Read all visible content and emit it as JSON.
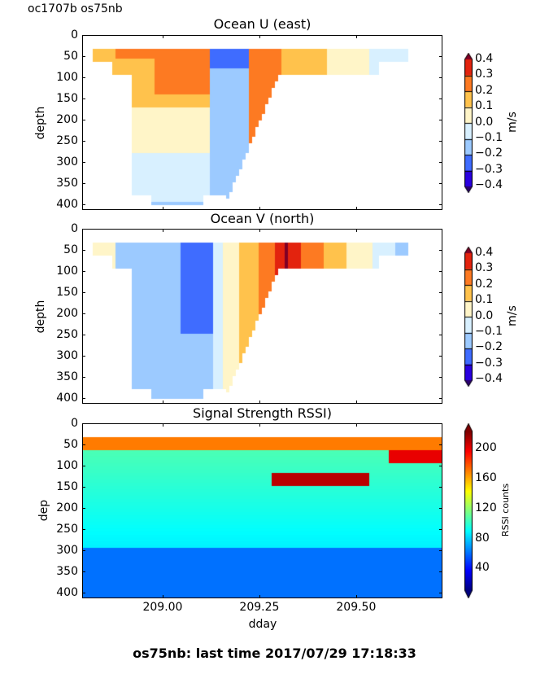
{
  "suptitle": "oc1707b os75nb",
  "footer": "os75nb: last time 2017/07/29 17:18:33",
  "chart_data": [
    {
      "type": "heatmap",
      "title": "Ocean U (east)",
      "xlabel": "",
      "ylabel": "depth",
      "xlim": [
        208.792,
        209.723
      ],
      "ylim": [
        414,
        0
      ],
      "yticks": [
        "0",
        "50",
        "100",
        "150",
        "200",
        "250",
        "300",
        "350",
        "400"
      ],
      "xticks": [
        209.0,
        209.25,
        209.5
      ],
      "colorbar": {
        "label": "m/s",
        "ticks": [
          "0.4",
          "0.3",
          "0.2",
          "0.1",
          "0.0",
          "−0.1",
          "−0.2",
          "−0.3",
          "−0.4"
        ],
        "levels": [
          -0.4,
          -0.3,
          -0.2,
          -0.1,
          0.0,
          0.1,
          0.2,
          0.3,
          0.4
        ],
        "colors": [
          "#2a00e0",
          "#3f6cff",
          "#9ccaff",
          "#d8f0ff",
          "#fff5c8",
          "#ffc24c",
          "#fd7a22",
          "#e3230e",
          "#800026"
        ],
        "extend": "both"
      },
      "field": "u"
    },
    {
      "type": "heatmap",
      "title": "Ocean V (north)",
      "xlabel": "",
      "ylabel": "depth",
      "xlim": [
        208.792,
        209.723
      ],
      "ylim": [
        414,
        0
      ],
      "yticks": [
        "0",
        "50",
        "100",
        "150",
        "200",
        "250",
        "300",
        "350",
        "400"
      ],
      "xticks": [
        209.0,
        209.25,
        209.5
      ],
      "colorbar": {
        "label": "m/s",
        "ticks": [
          "0.4",
          "0.3",
          "0.2",
          "0.1",
          "0.0",
          "−0.1",
          "−0.2",
          "−0.3",
          "−0.4"
        ],
        "levels": [
          -0.4,
          -0.3,
          -0.2,
          -0.1,
          0.0,
          0.1,
          0.2,
          0.3,
          0.4
        ],
        "colors": [
          "#2a00e0",
          "#3f6cff",
          "#9ccaff",
          "#d8f0ff",
          "#fff5c8",
          "#ffc24c",
          "#fd7a22",
          "#e3230e",
          "#800026"
        ],
        "extend": "both"
      },
      "field": "v"
    },
    {
      "type": "heatmap",
      "title": "Signal Strength RSSI)",
      "xlabel": "dday",
      "ylabel": "dep",
      "xlim": [
        208.792,
        209.723
      ],
      "ylim": [
        414,
        0
      ],
      "yticks": [
        "0",
        "50",
        "100",
        "150",
        "200",
        "250",
        "300",
        "350",
        "400"
      ],
      "xticks": [
        "209.00",
        "209.25",
        "209.50"
      ],
      "xtick_values": [
        209.0,
        209.25,
        209.5
      ],
      "colorbar": {
        "label": "RSSI counts",
        "ticks": [
          "200",
          "160",
          "120",
          "80",
          "40"
        ],
        "tick_values": [
          200,
          160,
          120,
          80,
          40
        ],
        "range": [
          10,
          222
        ],
        "colormap": "jet",
        "extend": "both"
      },
      "field": "rssi"
    }
  ]
}
